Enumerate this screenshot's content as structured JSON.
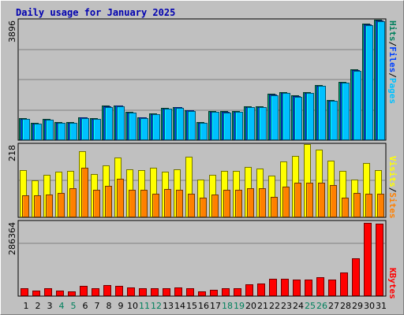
{
  "title": "Daily usage for January 2025",
  "colors": {
    "hits": "#00805c",
    "files": "#0040ff",
    "pages": "#00c0ff",
    "visits": "#ffff00",
    "sites": "#ff8000",
    "kbytes": "#ff0000",
    "separator": "#000000",
    "weekday": "#000000",
    "weekend": "#00805c",
    "panel_bg": "#c0c0c0",
    "grid": "#808080"
  },
  "chart_data": [
    {
      "type": "bar",
      "panel": "hits-files-pages",
      "max_label": "3896",
      "ylim": [
        0,
        3896
      ],
      "legend": [
        {
          "key": "hits",
          "label": "Hits"
        },
        {
          "key": "sep",
          "label": "/"
        },
        {
          "key": "files",
          "label": "Files"
        },
        {
          "key": "sep",
          "label": "/"
        },
        {
          "key": "pages",
          "label": "Pages"
        }
      ],
      "categories": [
        "1",
        "2",
        "3",
        "4",
        "5",
        "6",
        "7",
        "8",
        "9",
        "10",
        "11",
        "12",
        "13",
        "14",
        "15",
        "16",
        "17",
        "18",
        "19",
        "20",
        "21",
        "22",
        "23",
        "24",
        "25",
        "26",
        "27",
        "28",
        "29",
        "30",
        "31"
      ],
      "series": [
        {
          "name": "Hits",
          "key": "hits",
          "values": [
            710,
            560,
            680,
            590,
            590,
            750,
            720,
            1110,
            1130,
            910,
            750,
            870,
            1040,
            1080,
            980,
            590,
            940,
            930,
            940,
            1100,
            1100,
            1490,
            1560,
            1440,
            1550,
            1780,
            1300,
            1880,
            2280,
            3780,
            3896
          ]
        },
        {
          "name": "Files",
          "key": "files",
          "values": [
            690,
            540,
            660,
            570,
            570,
            730,
            700,
            1090,
            1110,
            890,
            730,
            850,
            1020,
            1060,
            960,
            570,
            920,
            910,
            920,
            1080,
            1080,
            1470,
            1540,
            1420,
            1530,
            1760,
            1280,
            1860,
            2260,
            3740,
            3860
          ]
        },
        {
          "name": "Pages",
          "key": "pages",
          "values": [
            680,
            530,
            650,
            560,
            560,
            720,
            690,
            1070,
            1100,
            880,
            720,
            840,
            1010,
            1050,
            950,
            560,
            910,
            900,
            910,
            1070,
            1070,
            1460,
            1530,
            1410,
            1520,
            1750,
            1270,
            1850,
            2250,
            3720,
            3850
          ]
        }
      ]
    },
    {
      "type": "bar",
      "panel": "visits-sites",
      "max_label": "218",
      "ylim": [
        0,
        218
      ],
      "legend": [
        {
          "key": "visits",
          "label": "Visits"
        },
        {
          "key": "sep",
          "label": "/"
        },
        {
          "key": "sites",
          "label": "Sites"
        }
      ],
      "categories": [
        "1",
        "2",
        "3",
        "4",
        "5",
        "6",
        "7",
        "8",
        "9",
        "10",
        "11",
        "12",
        "13",
        "14",
        "15",
        "16",
        "17",
        "18",
        "19",
        "20",
        "21",
        "22",
        "23",
        "24",
        "25",
        "26",
        "27",
        "28",
        "29",
        "30",
        "31"
      ],
      "series": [
        {
          "name": "Visits",
          "key": "visits",
          "values": [
            141,
            109,
            126,
            136,
            139,
            198,
            128,
            154,
            177,
            143,
            140,
            147,
            137,
            143,
            180,
            112,
            127,
            139,
            139,
            150,
            146,
            124,
            166,
            184,
            218,
            202,
            168,
            139,
            113,
            161,
            140
          ]
        },
        {
          "name": "Sites",
          "key": "sites",
          "values": [
            65,
            66,
            67,
            73,
            86,
            148,
            82,
            94,
            114,
            81,
            82,
            70,
            84,
            82,
            70,
            58,
            67,
            81,
            82,
            86,
            86,
            62,
            91,
            102,
            102,
            102,
            96,
            58,
            73,
            70,
            70
          ]
        }
      ]
    },
    {
      "type": "bar",
      "panel": "kbytes",
      "max_label": "286364",
      "ylim": [
        0,
        286364
      ],
      "legend": [
        {
          "key": "kbytes",
          "label": "KBytes"
        }
      ],
      "categories": [
        "1",
        "2",
        "3",
        "4",
        "5",
        "6",
        "7",
        "8",
        "9",
        "10",
        "11",
        "12",
        "13",
        "14",
        "15",
        "16",
        "17",
        "18",
        "19",
        "20",
        "21",
        "22",
        "23",
        "24",
        "25",
        "26",
        "27",
        "28",
        "29",
        "30",
        "31"
      ],
      "series": [
        {
          "name": "KBytes",
          "key": "kbytes",
          "values": [
            30000,
            20000,
            29000,
            22000,
            18000,
            38000,
            31000,
            42000,
            40000,
            34000,
            31000,
            30000,
            30000,
            32000,
            31000,
            17000,
            24000,
            30000,
            29000,
            44000,
            49000,
            67000,
            66000,
            62000,
            64000,
            71000,
            64000,
            90000,
            146000,
            281000,
            278000
          ]
        }
      ]
    }
  ],
  "day_labels": [
    "1",
    "2",
    "3",
    "4",
    "5",
    "6",
    "7",
    "8",
    "9",
    "10",
    "11",
    "12",
    "13",
    "14",
    "15",
    "16",
    "17",
    "18",
    "19",
    "20",
    "21",
    "22",
    "23",
    "24",
    "25",
    "26",
    "27",
    "28",
    "29",
    "30",
    "31"
  ],
  "weekend_days": [
    "4",
    "5",
    "11",
    "12",
    "18",
    "19",
    "25",
    "26"
  ]
}
